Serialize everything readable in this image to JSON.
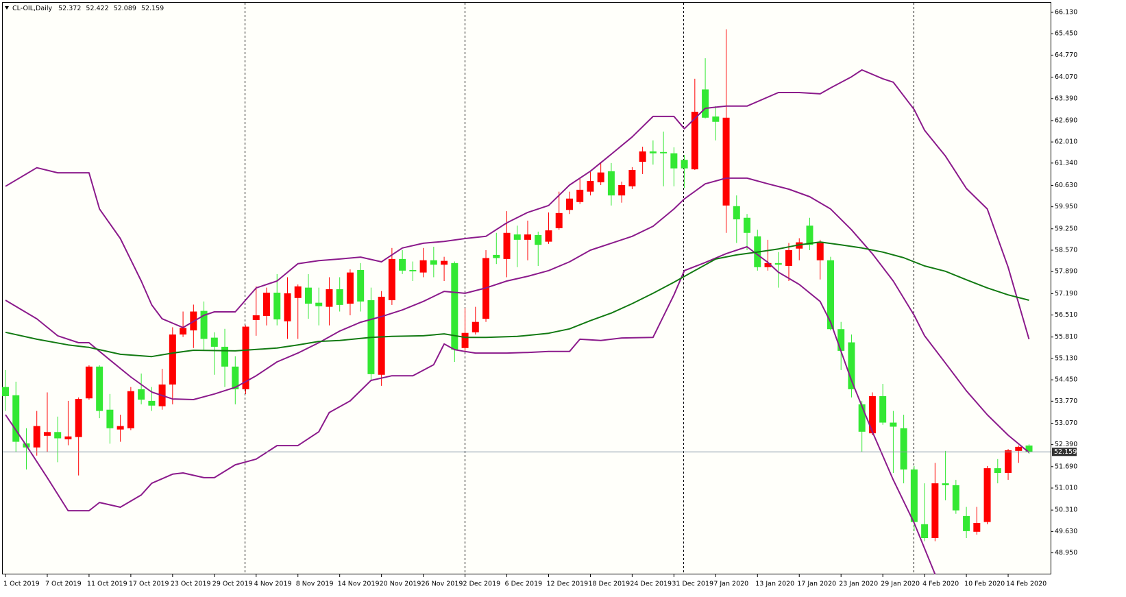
{
  "chart_data": {
    "type": "candlestick",
    "title": "CL-OIL,Daily",
    "header_values": [
      52.372,
      52.422,
      52.089,
      52.159
    ],
    "categories": [
      "1 Oct 2019",
      null,
      null,
      null,
      "7 Oct 2019",
      null,
      null,
      null,
      "11 Oct 2019",
      null,
      null,
      null,
      "17 Oct 2019",
      null,
      null,
      null,
      "23 Oct 2019",
      null,
      null,
      null,
      "29 Oct 2019",
      null,
      null,
      null,
      "4 Nov 2019",
      null,
      null,
      null,
      "8 Nov 2019",
      null,
      null,
      null,
      "14 Nov 2019",
      null,
      null,
      null,
      "20 Nov 2019",
      null,
      null,
      null,
      "26 Nov 2019",
      null,
      null,
      null,
      "2 Dec 2019",
      null,
      null,
      null,
      "6 Dec 2019",
      null,
      null,
      null,
      "12 Dec 2019",
      null,
      null,
      null,
      "18 Dec 2019",
      null,
      null,
      null,
      "24 Dec 2019",
      null,
      null,
      null,
      "31 Dec 2019",
      null,
      null,
      null,
      "7 Jan 2020",
      null,
      null,
      null,
      "13 Jan 2020",
      null,
      null,
      null,
      "17 Jan 2020",
      null,
      null,
      null,
      "23 Jan 2020",
      null,
      null,
      null,
      "29 Jan 2020",
      null,
      null,
      null,
      "4 Feb 2020",
      null,
      null,
      null,
      "10 Feb 2020",
      null,
      null,
      null,
      "14 Feb 2020",
      null,
      null
    ],
    "open": [
      53.93,
      52.48,
      52.3,
      52.98,
      52.79,
      52.59,
      52.65,
      53.84,
      54.87,
      53.46,
      52.91,
      52.98,
      54.09,
      53.82,
      53.63,
      54.3,
      55.89,
      56.1,
      56.62,
      55.75,
      55.5,
      54.87,
      54.15,
      56.14,
      56.5,
      57.22,
      56.37,
      57.2,
      57.42,
      56.87,
      56.79,
      57.33,
      56.83,
      57.86,
      56.94,
      54.63,
      57.09,
      58.29,
      57.92,
      57.9,
      58.25,
      58.11,
      58.23,
      55.41,
      55.94,
      56.29,
      58.32,
      58.32,
      59.12,
      58.9,
      59.07,
      58.74,
      59.2,
      59.75,
      60.21,
      60.49,
      60.77,
      61.04,
      60.31,
      60.64,
      61.12,
      61.71,
      61.65,
      61.65,
      61.17,
      61.17,
      62.97,
      62.78,
      62.65,
      62.78,
      59.55,
      59.12,
      58.03,
      58.16,
      58.11,
      58.57,
      58.82,
      58.74,
      58.8,
      56.06,
      55.37,
      54.15,
      52.8,
      53.93,
      53.09,
      52.96,
      51.6,
      49.93,
      49.42,
      51.16,
      51.1,
      50.3,
      49.64,
      49.9,
      51.64,
      51.49,
      52.21,
      52.32,
      52.15
    ],
    "high": [
      54.76,
      54.39,
      52.91,
      53.46,
      54.05,
      53.28,
      53.78,
      53.89,
      54.91,
      54.91,
      54.0,
      53.34,
      54.22,
      54.65,
      54.22,
      54.8,
      56.12,
      56.62,
      56.84,
      56.94,
      55.96,
      56.07,
      55.2,
      56.18,
      57.42,
      57.38,
      57.81,
      57.71,
      57.48,
      57.81,
      57.38,
      57.71,
      57.71,
      57.96,
      58.16,
      57.38,
      57.27,
      58.64,
      58.57,
      58.21,
      58.64,
      58.68,
      58.36,
      58.21,
      56.73,
      56.77,
      58.57,
      59.12,
      59.81,
      59.35,
      59.51,
      59.16,
      59.77,
      60.43,
      60.43,
      60.86,
      61.08,
      61.38,
      61.34,
      60.75,
      61.21,
      61.86,
      62.06,
      62.34,
      61.84,
      61.6,
      64.02,
      64.67,
      63.15,
      65.59,
      60.31,
      59.72,
      59.22,
      58.9,
      58.51,
      58.8,
      58.95,
      59.6,
      58.9,
      58.36,
      56.29,
      55.89,
      53.78,
      54.05,
      54.32,
      53.46,
      53.34,
      51.71,
      51.16,
      51.81,
      52.19,
      51.27,
      50.41,
      50.41,
      51.71,
      51.93,
      52.25,
      52.36,
      52.4
    ],
    "low": [
      53.46,
      52.15,
      51.6,
      52.04,
      52.15,
      51.83,
      52.37,
      51.41,
      53.82,
      53.23,
      52.42,
      52.48,
      52.85,
      53.67,
      53.46,
      53.5,
      53.67,
      55.81,
      55.46,
      55.41,
      54.61,
      54.22,
      53.67,
      54.0,
      55.85,
      56.18,
      56.18,
      55.75,
      55.75,
      56.39,
      56.18,
      56.18,
      56.62,
      56.5,
      56.62,
      54.43,
      54.26,
      56.83,
      57.81,
      57.59,
      57.71,
      57.71,
      57.59,
      55.02,
      55.37,
      55.89,
      56.29,
      58.13,
      57.71,
      58.03,
      58.25,
      58.07,
      58.77,
      59.22,
      59.72,
      60.04,
      60.31,
      60.64,
      59.99,
      60.08,
      60.51,
      60.99,
      61.29,
      60.6,
      60.6,
      60.54,
      61.12,
      62.76,
      62.06,
      59.12,
      58.8,
      58.57,
      57.92,
      57.92,
      57.38,
      57.59,
      58.25,
      58.57,
      57.64,
      56.02,
      54.76,
      53.89,
      52.15,
      52.69,
      53.02,
      51.49,
      51.16,
      49.64,
      49.32,
      49.32,
      50.62,
      50.19,
      49.42,
      49.53,
      49.86,
      51.16,
      51.27,
      51.81,
      52.1
    ],
    "close": [
      54.22,
      53.96,
      52.43,
      52.3,
      52.67,
      52.79,
      52.56,
      52.63,
      53.86,
      54.87,
      53.5,
      52.87,
      52.91,
      54.15,
      53.78,
      53.61,
      54.3,
      55.89,
      56.02,
      56.64,
      55.79,
      55.5,
      54.87,
      54.15,
      56.35,
      56.48,
      57.22,
      56.31,
      57.05,
      57.38,
      56.9,
      56.77,
      57.33,
      56.87,
      57.94,
      56.98,
      54.61,
      56.98,
      58.29,
      57.94,
      57.86,
      58.25,
      58.11,
      58.16,
      55.46,
      55.96,
      56.39,
      58.42,
      58.29,
      59.07,
      58.9,
      59.05,
      58.84,
      59.27,
      59.85,
      60.1,
      60.43,
      60.73,
      61.08,
      60.31,
      60.6,
      61.38,
      61.71,
      61.69,
      61.65,
      61.44,
      61.14,
      63.68,
      62.82,
      59.99,
      59.97,
      59.6,
      59.01,
      58.03,
      58.16,
      58.07,
      58.62,
      59.35,
      58.25,
      58.25,
      56.06,
      55.64,
      53.67,
      52.75,
      53.93,
      53.09,
      52.91,
      51.6,
      49.86,
      49.42,
      51.16,
      51.1,
      50.12,
      49.62,
      49.93,
      51.64,
      51.49,
      52.19,
      52.36
    ],
    "up_color": "#33e833",
    "down_color": "#ff0000",
    "overlays": [
      {
        "color": "#8b1a8b",
        "x": [
          0,
          3,
          5,
          8,
          9,
          11,
          13,
          14,
          15,
          17,
          19,
          20,
          22,
          24,
          26,
          28,
          30,
          32,
          34,
          36,
          38,
          40,
          42,
          44,
          46,
          48,
          50,
          52,
          54,
          56,
          58,
          60,
          62,
          64,
          65,
          67,
          69,
          71,
          74,
          76,
          78,
          79,
          81,
          82,
          84,
          85,
          87,
          88,
          90,
          92,
          94,
          96,
          98
        ],
        "values": [
          60.6,
          61.19,
          61.03,
          61.03,
          59.88,
          58.94,
          57.59,
          56.83,
          56.39,
          56.11,
          56.5,
          56.61,
          56.61,
          57.37,
          57.59,
          58.14,
          58.24,
          58.29,
          58.35,
          58.2,
          58.64,
          58.79,
          58.85,
          58.94,
          59.01,
          59.44,
          59.77,
          59.99,
          60.64,
          61.08,
          61.62,
          62.17,
          62.82,
          62.82,
          62.43,
          63.08,
          63.15,
          63.15,
          63.58,
          63.58,
          63.54,
          63.73,
          64.08,
          64.3,
          64.02,
          63.91,
          63.04,
          62.38,
          61.56,
          60.53,
          59.88,
          58.03,
          55.74
        ]
      },
      {
        "color": "#8b1a8b",
        "x": [
          0,
          3,
          5,
          7,
          8,
          10,
          12,
          14,
          16,
          18,
          20,
          22,
          24,
          26,
          28,
          30,
          32,
          34,
          36,
          38,
          40,
          42,
          44,
          46,
          48,
          50,
          52,
          54,
          56,
          58,
          60,
          62,
          64,
          65,
          67,
          69,
          71,
          73,
          75,
          77,
          79,
          81,
          83,
          85,
          87,
          88,
          90,
          92,
          94,
          96,
          98
        ],
        "values": [
          56.98,
          56.39,
          55.85,
          55.63,
          55.63,
          55.08,
          54.54,
          54.06,
          53.84,
          53.82,
          54.0,
          54.21,
          54.58,
          55.02,
          55.3,
          55.63,
          56.0,
          56.28,
          56.46,
          56.67,
          56.94,
          57.26,
          57.2,
          57.37,
          57.59,
          57.74,
          57.92,
          58.2,
          58.57,
          58.79,
          59.01,
          59.33,
          59.88,
          60.2,
          60.68,
          60.86,
          60.86,
          60.68,
          60.51,
          60.27,
          59.88,
          59.22,
          58.46,
          57.59,
          56.5,
          55.85,
          54.98,
          54.1,
          53.34,
          52.69,
          52.14
        ]
      },
      {
        "color": "#8b1a8b",
        "x": [
          0,
          2,
          4,
          6,
          8,
          9,
          11,
          13,
          14,
          16,
          17,
          19,
          20,
          22,
          24,
          26,
          28,
          30,
          31,
          33,
          35,
          37,
          39,
          41,
          42,
          43,
          44,
          45,
          48,
          50,
          52,
          54,
          55,
          57,
          59,
          62,
          64,
          65,
          67,
          69,
          71,
          73,
          74,
          76,
          78,
          79,
          81,
          83,
          85,
          87,
          89
        ],
        "values": [
          53.34,
          52.36,
          51.34,
          50.29,
          50.29,
          50.55,
          50.4,
          50.79,
          51.16,
          51.45,
          51.49,
          51.34,
          51.34,
          51.75,
          51.93,
          52.36,
          52.36,
          52.8,
          53.41,
          53.78,
          54.43,
          54.58,
          54.58,
          54.93,
          55.59,
          55.41,
          55.35,
          55.3,
          55.3,
          55.32,
          55.35,
          55.35,
          55.74,
          55.7,
          55.78,
          55.8,
          57.15,
          57.92,
          58.18,
          58.46,
          58.68,
          58.18,
          57.87,
          57.48,
          56.94,
          56.28,
          54.43,
          52.8,
          51.27,
          49.9,
          48.27
        ]
      },
      {
        "color": "#127a12",
        "x": [
          0,
          3,
          6,
          8,
          11,
          14,
          16,
          18,
          22,
          26,
          28,
          30,
          32,
          35,
          37,
          40,
          42,
          44,
          46,
          49,
          52,
          54,
          56,
          58,
          60,
          62,
          64,
          66,
          68,
          70,
          72,
          74,
          76,
          78,
          80,
          82,
          84,
          86,
          88,
          90,
          92,
          94,
          96,
          98
        ],
        "values": [
          55.96,
          55.74,
          55.56,
          55.48,
          55.26,
          55.19,
          55.3,
          55.39,
          55.37,
          55.46,
          55.56,
          55.67,
          55.7,
          55.8,
          55.83,
          55.85,
          55.91,
          55.8,
          55.8,
          55.83,
          55.93,
          56.07,
          56.33,
          56.57,
          56.87,
          57.2,
          57.55,
          57.92,
          58.29,
          58.42,
          58.51,
          58.61,
          58.74,
          58.83,
          58.74,
          58.64,
          58.51,
          58.33,
          58.07,
          57.9,
          57.63,
          57.37,
          57.15,
          56.98
        ]
      }
    ],
    "current_price": 52.159,
    "current_price_color": "#8a9aaa",
    "ylim": [
      48.2,
      66.13
    ],
    "yticks": [
      {
        "value": 66.13,
        "label": "66.130"
      },
      {
        "value": 65.45,
        "label": "65.450"
      },
      {
        "value": 64.77,
        "label": "64.770"
      },
      {
        "value": 64.07,
        "label": "64.070"
      },
      {
        "value": 63.39,
        "label": "63.390"
      },
      {
        "value": 62.69,
        "label": "62.690"
      },
      {
        "value": 62.01,
        "label": "62.010"
      },
      {
        "value": 61.34,
        "label": "61.340"
      },
      {
        "value": 60.63,
        "label": "60.630"
      },
      {
        "value": 59.95,
        "label": "59.950"
      },
      {
        "value": 59.25,
        "label": "59.250"
      },
      {
        "value": 58.57,
        "label": "58.570"
      },
      {
        "value": 57.89,
        "label": "57.890"
      },
      {
        "value": 57.19,
        "label": "57.190"
      },
      {
        "value": 56.51,
        "label": "56.510"
      },
      {
        "value": 55.81,
        "label": "55.810"
      },
      {
        "value": 55.13,
        "label": "55.130"
      },
      {
        "value": 54.45,
        "label": "54.450"
      },
      {
        "value": 53.77,
        "label": "53.770"
      },
      {
        "value": 53.07,
        "label": "53.070"
      },
      {
        "value": 52.39,
        "label": "52.390"
      },
      {
        "value": 51.69,
        "label": "51.690"
      },
      {
        "value": 51.01,
        "label": "51.010"
      },
      {
        "value": 50.31,
        "label": "50.310"
      },
      {
        "value": 49.63,
        "label": "49.630"
      },
      {
        "value": 48.95,
        "label": "48.950"
      }
    ],
    "grid": false
  }
}
